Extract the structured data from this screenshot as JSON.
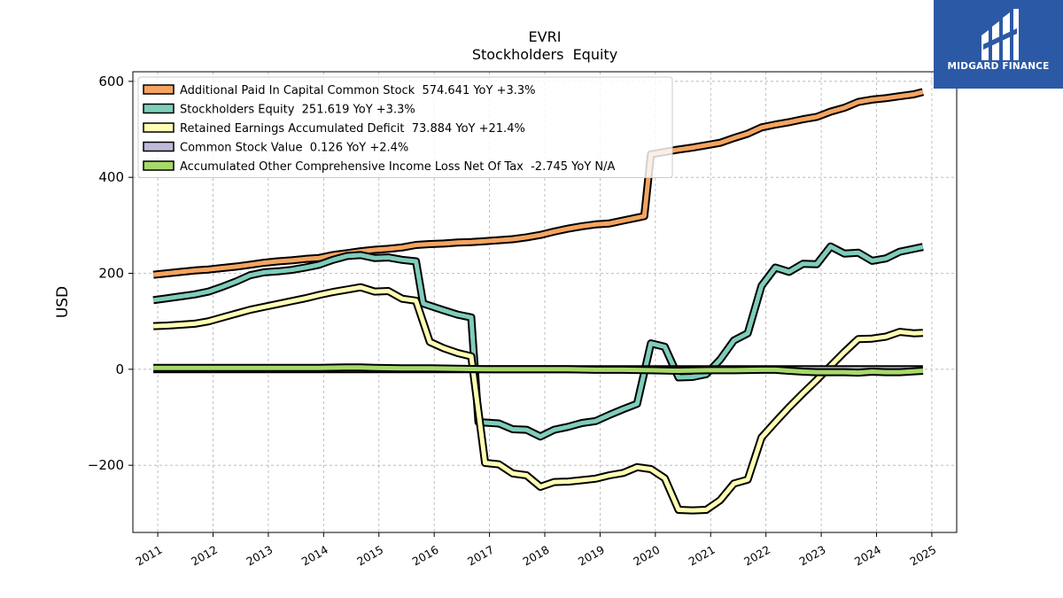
{
  "header": {
    "ticker": "EVRI",
    "subtitle": "Stockholders  Equity"
  },
  "logo": {
    "text": "MIDGARD FINANCE",
    "background": "#2c59a6"
  },
  "chart_data": {
    "type": "line",
    "title": "EVRI",
    "subtitle": "Stockholders  Equity",
    "xlabel": "",
    "ylabel": "USD",
    "xlim": [
      2010.55,
      2025.45
    ],
    "ylim": [
      -340,
      620
    ],
    "grid": true,
    "legend_position": "top-left",
    "x_ticks": [
      "2011",
      "2012",
      "2013",
      "2014",
      "2015",
      "2016",
      "2017",
      "2018",
      "2019",
      "2020",
      "2021",
      "2022",
      "2023",
      "2024",
      "2025"
    ],
    "y_ticks": [
      {
        "value": 600,
        "label": "600"
      },
      {
        "value": 400,
        "label": "400"
      },
      {
        "value": 200,
        "label": "200"
      },
      {
        "value": 0,
        "label": "0"
      },
      {
        "value": -200,
        "label": "−200"
      }
    ],
    "series": [
      {
        "name": "Additional Paid In Capital Common Stock",
        "legend": "Additional Paid In Capital Common Stock  574.641 YoY +3.3%",
        "color": "#f4a460",
        "points": [
          [
            2010.92,
            197
          ],
          [
            2011.17,
            200
          ],
          [
            2011.42,
            203
          ],
          [
            2011.67,
            206
          ],
          [
            2011.92,
            208
          ],
          [
            2012.17,
            211
          ],
          [
            2012.42,
            214
          ],
          [
            2012.67,
            218
          ],
          [
            2012.92,
            222
          ],
          [
            2013.17,
            225
          ],
          [
            2013.42,
            227
          ],
          [
            2013.67,
            230
          ],
          [
            2013.92,
            232
          ],
          [
            2014.17,
            238
          ],
          [
            2014.42,
            242
          ],
          [
            2014.67,
            246
          ],
          [
            2014.92,
            249
          ],
          [
            2015.17,
            251
          ],
          [
            2015.42,
            254
          ],
          [
            2015.67,
            259
          ],
          [
            2015.92,
            261
          ],
          [
            2016.17,
            262
          ],
          [
            2016.42,
            264
          ],
          [
            2016.67,
            265
          ],
          [
            2016.92,
            267
          ],
          [
            2017.17,
            269
          ],
          [
            2017.42,
            271
          ],
          [
            2017.67,
            275
          ],
          [
            2017.92,
            280
          ],
          [
            2018.17,
            287
          ],
          [
            2018.42,
            293
          ],
          [
            2018.67,
            298
          ],
          [
            2018.92,
            302
          ],
          [
            2019.17,
            304
          ],
          [
            2019.42,
            310
          ],
          [
            2019.67,
            316
          ],
          [
            2019.8,
            319
          ],
          [
            2019.92,
            448
          ],
          [
            2020.17,
            453
          ],
          [
            2020.42,
            458
          ],
          [
            2020.67,
            462
          ],
          [
            2020.92,
            467
          ],
          [
            2021.17,
            472
          ],
          [
            2021.42,
            482
          ],
          [
            2021.67,
            491
          ],
          [
            2021.92,
            504
          ],
          [
            2022.17,
            510
          ],
          [
            2022.42,
            515
          ],
          [
            2022.67,
            521
          ],
          [
            2022.92,
            526
          ],
          [
            2023.17,
            537
          ],
          [
            2023.42,
            545
          ],
          [
            2023.67,
            557
          ],
          [
            2023.92,
            562
          ],
          [
            2024.17,
            565
          ],
          [
            2024.42,
            569
          ],
          [
            2024.67,
            573
          ],
          [
            2024.84,
            578
          ]
        ]
      },
      {
        "name": "Stockholders Equity",
        "legend": "Stockholders Equity  251.619 YoY +3.3%",
        "color": "#7fcdbb",
        "points": [
          [
            2010.92,
            144
          ],
          [
            2011.17,
            148
          ],
          [
            2011.42,
            152
          ],
          [
            2011.67,
            156
          ],
          [
            2011.92,
            162
          ],
          [
            2012.17,
            172
          ],
          [
            2012.42,
            183
          ],
          [
            2012.67,
            196
          ],
          [
            2012.92,
            202
          ],
          [
            2013.17,
            204
          ],
          [
            2013.42,
            207
          ],
          [
            2013.67,
            212
          ],
          [
            2013.92,
            218
          ],
          [
            2014.17,
            228
          ],
          [
            2014.42,
            236
          ],
          [
            2014.67,
            238
          ],
          [
            2014.92,
            232
          ],
          [
            2015.17,
            233
          ],
          [
            2015.42,
            228
          ],
          [
            2015.67,
            225
          ],
          [
            2015.8,
            137
          ],
          [
            2016.17,
            123
          ],
          [
            2016.42,
            114
          ],
          [
            2016.67,
            108
          ],
          [
            2016.8,
            -110
          ],
          [
            2016.92,
            -111
          ],
          [
            2017.17,
            -113
          ],
          [
            2017.42,
            -125
          ],
          [
            2017.67,
            -126
          ],
          [
            2017.92,
            -140
          ],
          [
            2018.17,
            -126
          ],
          [
            2018.42,
            -120
          ],
          [
            2018.67,
            -112
          ],
          [
            2018.92,
            -108
          ],
          [
            2019.17,
            -95
          ],
          [
            2019.42,
            -83
          ],
          [
            2019.67,
            -72
          ],
          [
            2019.92,
            54
          ],
          [
            2020.17,
            47
          ],
          [
            2020.42,
            -17
          ],
          [
            2020.67,
            -16
          ],
          [
            2020.92,
            -10
          ],
          [
            2021.17,
            20
          ],
          [
            2021.42,
            60
          ],
          [
            2021.67,
            75
          ],
          [
            2021.92,
            174
          ],
          [
            2022.17,
            212
          ],
          [
            2022.42,
            203
          ],
          [
            2022.67,
            220
          ],
          [
            2022.92,
            219
          ],
          [
            2023.17,
            256
          ],
          [
            2023.42,
            241
          ],
          [
            2023.67,
            243
          ],
          [
            2023.92,
            226
          ],
          [
            2024.17,
            231
          ],
          [
            2024.42,
            245
          ],
          [
            2024.67,
            251
          ],
          [
            2024.84,
            255
          ]
        ]
      },
      {
        "name": "Retained Earnings Accumulated Deficit",
        "legend": "Retained Earnings Accumulated Deficit  73.884 YoY +21.4%",
        "color": "#ffffb3",
        "points": [
          [
            2010.92,
            90
          ],
          [
            2011.17,
            91
          ],
          [
            2011.42,
            93
          ],
          [
            2011.67,
            95
          ],
          [
            2011.92,
            100
          ],
          [
            2012.17,
            108
          ],
          [
            2012.42,
            116
          ],
          [
            2012.67,
            124
          ],
          [
            2012.92,
            130
          ],
          [
            2013.17,
            136
          ],
          [
            2013.42,
            142
          ],
          [
            2013.67,
            148
          ],
          [
            2013.92,
            155
          ],
          [
            2014.17,
            161
          ],
          [
            2014.42,
            166
          ],
          [
            2014.67,
            171
          ],
          [
            2014.92,
            162
          ],
          [
            2015.17,
            163
          ],
          [
            2015.42,
            147
          ],
          [
            2015.67,
            143
          ],
          [
            2015.92,
            57
          ],
          [
            2016.17,
            44
          ],
          [
            2016.42,
            34
          ],
          [
            2016.67,
            27
          ],
          [
            2016.92,
            -195
          ],
          [
            2017.17,
            -198
          ],
          [
            2017.42,
            -217
          ],
          [
            2017.67,
            -221
          ],
          [
            2017.92,
            -245
          ],
          [
            2018.17,
            -235
          ],
          [
            2018.42,
            -234
          ],
          [
            2018.67,
            -231
          ],
          [
            2018.92,
            -228
          ],
          [
            2019.17,
            -221
          ],
          [
            2019.42,
            -216
          ],
          [
            2019.67,
            -204
          ],
          [
            2019.92,
            -208
          ],
          [
            2020.17,
            -227
          ],
          [
            2020.42,
            -293
          ],
          [
            2020.67,
            -294
          ],
          [
            2020.92,
            -293
          ],
          [
            2021.17,
            -273
          ],
          [
            2021.42,
            -238
          ],
          [
            2021.67,
            -230
          ],
          [
            2021.92,
            -142
          ],
          [
            2022.17,
            -110
          ],
          [
            2022.42,
            -79
          ],
          [
            2022.67,
            -50
          ],
          [
            2022.92,
            -22
          ],
          [
            2023.17,
            7
          ],
          [
            2023.42,
            36
          ],
          [
            2023.67,
            63
          ],
          [
            2023.92,
            64
          ],
          [
            2024.17,
            68
          ],
          [
            2024.42,
            78
          ],
          [
            2024.67,
            75
          ],
          [
            2024.84,
            76
          ]
        ]
      },
      {
        "name": "Common Stock Value",
        "legend": "Common Stock Value  0.126 YoY +2.4%",
        "color": "#bebada",
        "points": [
          [
            2010.92,
            0.1
          ],
          [
            2012.92,
            0.1
          ],
          [
            2014.92,
            0.1
          ],
          [
            2016.92,
            0.1
          ],
          [
            2018.92,
            0.1
          ],
          [
            2020.92,
            0.12
          ],
          [
            2022.92,
            0.12
          ],
          [
            2024.84,
            0.13
          ]
        ]
      },
      {
        "name": "Accumulated Other Comprehensive Income Loss Net Of Tax",
        "legend": "Accumulated Other Comprehensive Income Loss Net Of Tax  -2.745 YoY N/A",
        "color": "#a6d96a",
        "points": [
          [
            2010.92,
            3
          ],
          [
            2011.42,
            3
          ],
          [
            2011.92,
            3
          ],
          [
            2012.42,
            3
          ],
          [
            2012.92,
            3
          ],
          [
            2013.42,
            3
          ],
          [
            2013.92,
            3
          ],
          [
            2014.42,
            4
          ],
          [
            2014.67,
            4
          ],
          [
            2014.92,
            3
          ],
          [
            2015.42,
            2
          ],
          [
            2015.92,
            2
          ],
          [
            2016.42,
            1
          ],
          [
            2016.92,
            0
          ],
          [
            2017.42,
            0
          ],
          [
            2017.92,
            0
          ],
          [
            2018.42,
            0
          ],
          [
            2018.92,
            -1
          ],
          [
            2019.42,
            -1
          ],
          [
            2019.92,
            -2
          ],
          [
            2020.42,
            -3
          ],
          [
            2020.92,
            -2
          ],
          [
            2021.42,
            -2
          ],
          [
            2021.92,
            -1
          ],
          [
            2022.17,
            -1
          ],
          [
            2022.42,
            -3
          ],
          [
            2022.67,
            -5
          ],
          [
            2022.92,
            -6
          ],
          [
            2023.42,
            -6
          ],
          [
            2023.67,
            -7
          ],
          [
            2023.92,
            -5
          ],
          [
            2024.17,
            -6
          ],
          [
            2024.42,
            -6
          ],
          [
            2024.84,
            -3
          ]
        ]
      }
    ]
  }
}
